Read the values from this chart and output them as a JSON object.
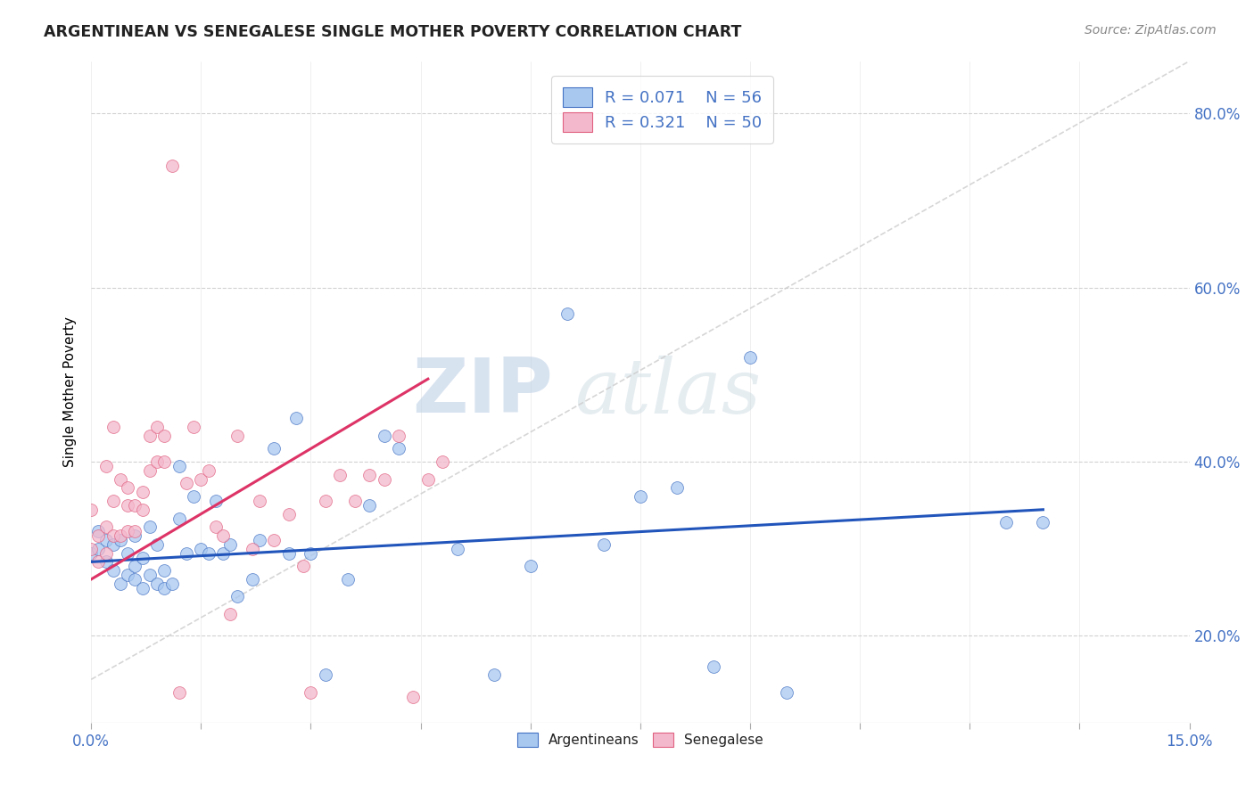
{
  "title": "ARGENTINEAN VS SENEGALESE SINGLE MOTHER POVERTY CORRELATION CHART",
  "source": "Source: ZipAtlas.com",
  "xlabel": "",
  "ylabel": "Single Mother Poverty",
  "xlim": [
    0.0,
    0.15
  ],
  "ylim": [
    0.1,
    0.86
  ],
  "ytick_positions": [
    0.2,
    0.4,
    0.6,
    0.8
  ],
  "ytick_labels": [
    "20.0%",
    "40.0%",
    "60.0%",
    "80.0%"
  ],
  "xtick_positions": [
    0.0,
    0.15
  ],
  "xtick_labels": [
    "0.0%",
    "15.0%"
  ],
  "legend_line1": "R = 0.071    N = 56",
  "legend_line2": "R = 0.321    N = 50",
  "blue_scatter_color": "#a8c8f0",
  "blue_edge_color": "#4472c4",
  "pink_scatter_color": "#f4b8cc",
  "pink_edge_color": "#e06080",
  "blue_line_color": "#2255bb",
  "pink_line_color": "#dd3366",
  "diag_color": "#cccccc",
  "watermark_text": "ZIPatlas",
  "watermark_color": "#c8d8e8",
  "background_color": "#ffffff",
  "grid_color": "#cccccc",
  "title_color": "#222222",
  "axis_label_color": "#000000",
  "tick_label_color": "#4472c4",
  "arg_x": [
    0.0,
    0.001,
    0.001,
    0.002,
    0.002,
    0.003,
    0.003,
    0.004,
    0.004,
    0.005,
    0.005,
    0.006,
    0.006,
    0.006,
    0.007,
    0.007,
    0.008,
    0.008,
    0.009,
    0.009,
    0.01,
    0.01,
    0.011,
    0.012,
    0.012,
    0.013,
    0.014,
    0.015,
    0.016,
    0.017,
    0.018,
    0.019,
    0.02,
    0.022,
    0.023,
    0.025,
    0.027,
    0.028,
    0.03,
    0.032,
    0.035,
    0.038,
    0.04,
    0.042,
    0.05,
    0.055,
    0.06,
    0.065,
    0.07,
    0.075,
    0.08,
    0.085,
    0.09,
    0.095,
    0.125,
    0.13
  ],
  "arg_y": [
    0.295,
    0.3,
    0.32,
    0.285,
    0.31,
    0.275,
    0.305,
    0.26,
    0.31,
    0.27,
    0.295,
    0.265,
    0.28,
    0.315,
    0.255,
    0.29,
    0.27,
    0.325,
    0.26,
    0.305,
    0.255,
    0.275,
    0.26,
    0.335,
    0.395,
    0.295,
    0.36,
    0.3,
    0.295,
    0.355,
    0.295,
    0.305,
    0.245,
    0.265,
    0.31,
    0.415,
    0.295,
    0.45,
    0.295,
    0.155,
    0.265,
    0.35,
    0.43,
    0.415,
    0.3,
    0.155,
    0.28,
    0.57,
    0.305,
    0.36,
    0.37,
    0.165,
    0.52,
    0.135,
    0.33,
    0.33
  ],
  "sen_x": [
    0.0,
    0.0,
    0.001,
    0.001,
    0.002,
    0.002,
    0.002,
    0.003,
    0.003,
    0.003,
    0.004,
    0.004,
    0.005,
    0.005,
    0.005,
    0.006,
    0.006,
    0.007,
    0.007,
    0.008,
    0.008,
    0.009,
    0.009,
    0.01,
    0.01,
    0.011,
    0.012,
    0.013,
    0.014,
    0.015,
    0.016,
    0.017,
    0.018,
    0.019,
    0.02,
    0.022,
    0.023,
    0.025,
    0.027,
    0.029,
    0.03,
    0.032,
    0.034,
    0.036,
    0.038,
    0.04,
    0.042,
    0.044,
    0.046,
    0.048
  ],
  "sen_y": [
    0.3,
    0.345,
    0.285,
    0.315,
    0.295,
    0.325,
    0.395,
    0.315,
    0.355,
    0.44,
    0.38,
    0.315,
    0.35,
    0.32,
    0.37,
    0.32,
    0.35,
    0.365,
    0.345,
    0.39,
    0.43,
    0.4,
    0.44,
    0.43,
    0.4,
    0.74,
    0.135,
    0.375,
    0.44,
    0.38,
    0.39,
    0.325,
    0.315,
    0.225,
    0.43,
    0.3,
    0.355,
    0.31,
    0.34,
    0.28,
    0.135,
    0.355,
    0.385,
    0.355,
    0.385,
    0.38,
    0.43,
    0.13,
    0.38,
    0.4
  ],
  "blue_trend_x0": 0.0,
  "blue_trend_x1": 0.13,
  "blue_trend_y0": 0.285,
  "blue_trend_y1": 0.345,
  "pink_trend_x0": 0.0,
  "pink_trend_x1": 0.046,
  "pink_trend_y0": 0.265,
  "pink_trend_y1": 0.495
}
